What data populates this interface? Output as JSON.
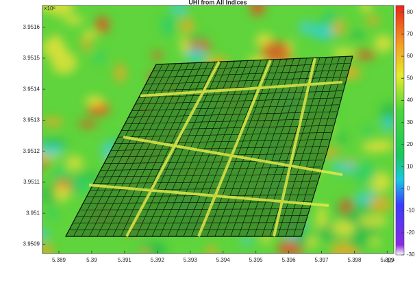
{
  "chart_data": {
    "type": "heatmap",
    "title": "UHI from All Indices",
    "xlim": [
      5.3885,
      5.3992
    ],
    "xticks": [
      5.389,
      5.39,
      5.391,
      5.392,
      5.393,
      5.394,
      5.395,
      5.396,
      5.397,
      5.398,
      5.399
    ],
    "x_multiplier": "×10⁵",
    "ylim": [
      3.95087,
      3.95167
    ],
    "yticks": [
      3.9509,
      3.951,
      3.9511,
      3.9512,
      3.9513,
      3.9514,
      3.9515,
      3.9516
    ],
    "y_multiplier": "×10⁶",
    "colorbar": {
      "lim": [
        -30,
        83
      ],
      "ticks": [
        -30,
        -20,
        -10,
        0,
        10,
        20,
        30,
        40,
        50,
        60,
        70,
        80
      ]
    }
  }
}
